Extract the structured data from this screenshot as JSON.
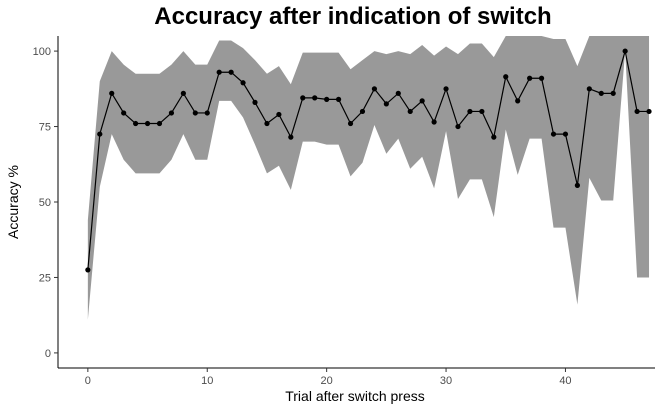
{
  "chart_data": {
    "type": "line",
    "title": "Accuracy after indication of switch",
    "xlabel": "Trial after switch press",
    "ylabel": "Accuracy %",
    "xlim": [
      -2.5,
      47.5
    ],
    "ylim": [
      -5,
      105
    ],
    "x_ticks": [
      0,
      10,
      20,
      30,
      40
    ],
    "y_ticks": [
      0,
      25,
      50,
      75,
      100
    ],
    "grid": false,
    "series": [
      {
        "x": [
          0,
          1,
          2,
          3,
          4,
          5,
          6,
          7,
          8,
          9,
          10,
          11,
          12,
          13,
          14,
          15,
          16,
          17,
          18,
          19,
          20,
          21,
          22,
          23,
          24,
          25,
          26,
          27,
          28,
          29,
          30,
          31,
          32,
          33,
          34,
          35,
          36,
          37,
          38,
          39,
          40,
          41,
          42,
          43,
          44,
          45,
          46,
          47
        ],
        "y": [
          27.5,
          72.5,
          86,
          79.5,
          76,
          76,
          76,
          79.5,
          86,
          79.5,
          79.5,
          93,
          93,
          89.5,
          83,
          76,
          79,
          71.5,
          84.5,
          84.5,
          84,
          84,
          76,
          80,
          87.5,
          82.5,
          86,
          80,
          83.5,
          76.5,
          87.5,
          75,
          80,
          80,
          71.5,
          91.5,
          83.5,
          91,
          91,
          72.5,
          72.5,
          55.5,
          87.5,
          86,
          86,
          100,
          80,
          80
        ],
        "lower": [
          11,
          55,
          72.5,
          64,
          59.5,
          59.5,
          59.5,
          64,
          72.5,
          64,
          64,
          83.5,
          83.5,
          78,
          69,
          59.5,
          62,
          54,
          70,
          70,
          69,
          69,
          58.5,
          63,
          75.5,
          66,
          71,
          61,
          65,
          54.5,
          73.5,
          51,
          57.5,
          57.5,
          45,
          74,
          59,
          71,
          71,
          41.5,
          41.5,
          16,
          58,
          50.5,
          50.5,
          100,
          25,
          25
        ],
        "upper": [
          44,
          90,
          100,
          95.5,
          92.5,
          92.5,
          92.5,
          95.5,
          100,
          95.5,
          95.5,
          103.5,
          103.5,
          101,
          97,
          92.5,
          95,
          89,
          99.5,
          99.5,
          99.5,
          99.5,
          94,
          97,
          100,
          99,
          100,
          99,
          102,
          98.5,
          101.5,
          99,
          102.5,
          102.5,
          98,
          105,
          105,
          105,
          105,
          104,
          104,
          95,
          105,
          105,
          105,
          105,
          105,
          105
        ]
      }
    ]
  }
}
